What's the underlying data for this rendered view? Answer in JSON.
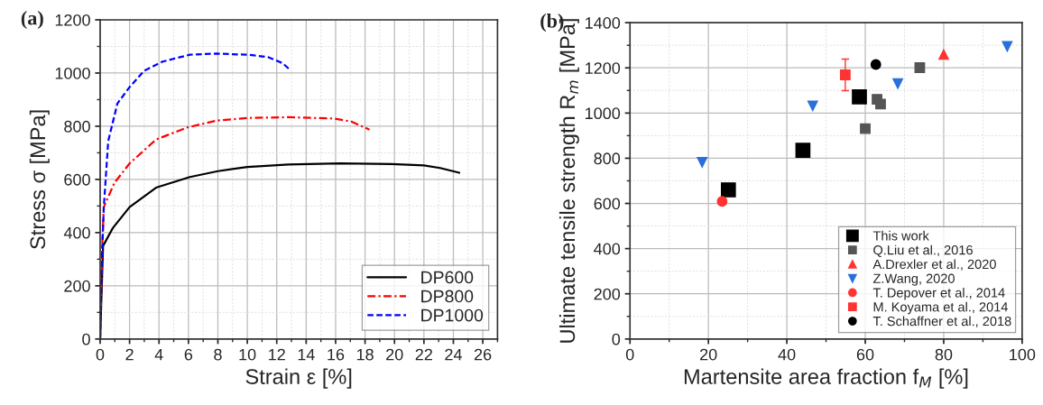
{
  "chart_data": [
    {
      "type": "line",
      "title": "(a)",
      "xlabel": "Strain ε [%]",
      "ylabel": "Stress σ [MPa]",
      "xlim": [
        0,
        27
      ],
      "ylim": [
        0,
        1200
      ],
      "xticks": [
        0,
        2,
        4,
        6,
        8,
        10,
        12,
        14,
        16,
        18,
        20,
        22,
        24,
        26
      ],
      "yticks": [
        0,
        200,
        400,
        600,
        800,
        1000,
        1200
      ],
      "grid": true,
      "legend": "bottom right",
      "series": [
        {
          "name": "DP600",
          "color": "#000000",
          "line_style": "solid",
          "x": [
            0,
            0.2,
            0.86,
            2,
            3.8,
            6.1,
            8,
            10,
            12.8,
            16.3,
            19.8,
            22,
            23.1,
            24.4
          ],
          "values": [
            0,
            350,
            417,
            496,
            569,
            609,
            631,
            647,
            656,
            660,
            658,
            653,
            643,
            625
          ]
        },
        {
          "name": "DP800",
          "color": "#ff0000",
          "line_style": "dashdot",
          "x": [
            0,
            0.14,
            0.25,
            0.96,
            2,
            3.8,
            5.9,
            7.9,
            10,
            12.8,
            15.9,
            17.1,
            18.3
          ],
          "values": [
            0,
            349,
            496,
            586,
            660,
            750,
            795,
            821,
            831,
            834,
            829,
            817,
            787
          ]
        },
        {
          "name": "DP1000",
          "color": "#0000ff",
          "line_style": "dashed",
          "x": [
            0,
            0.1,
            0.25,
            0.55,
            1.17,
            2,
            3,
            4.25,
            6.1,
            7.9,
            10,
            11.4,
            12.4,
            12.9
          ],
          "values": [
            0,
            259,
            496,
            744,
            885,
            947,
            1009,
            1043,
            1069,
            1073,
            1069,
            1060,
            1037,
            1012
          ]
        }
      ]
    },
    {
      "type": "scatter",
      "title": "(b)",
      "xlabel": "Martensite area fraction f$_{M}$ [%]",
      "ylabel": "Ultimate tensile strength R$_{m}$ [MPa]",
      "xlim": [
        0,
        100
      ],
      "ylim": [
        0,
        1400
      ],
      "xticks": [
        0,
        20,
        40,
        60,
        80,
        100
      ],
      "yticks": [
        0,
        200,
        400,
        600,
        800,
        1000,
        1200,
        1400
      ],
      "grid": true,
      "legend": "bottom right",
      "series": [
        {
          "name": "This work",
          "color": "#000000",
          "marker": "square",
          "x": [
            25.1,
            44.1,
            58.5
          ],
          "values": [
            660,
            835,
            1072
          ]
        },
        {
          "name": "Q.Liu et al., 2016",
          "color": "#555555",
          "marker": "square",
          "x": [
            60.0,
            63.0,
            63.9,
            73.9
          ],
          "values": [
            931,
            1061,
            1040,
            1201
          ]
        },
        {
          "name": "A.Drexler et al., 2020",
          "color": "#ff3333",
          "marker": "triangle",
          "x": [
            80.0
          ],
          "values": [
            1259
          ]
        },
        {
          "name": "Z.Wang, 2020",
          "color": "#2a6fdb",
          "marker": "triangle_down",
          "x": [
            18.4,
            46.6,
            68.3,
            96.2
          ],
          "values": [
            782,
            1032,
            1130,
            1295
          ]
        },
        {
          "name": "T. Depover et al., 2014",
          "color": "#ff3333",
          "marker": "circle",
          "x": [
            23.5
          ],
          "values": [
            609
          ]
        },
        {
          "name": "M. Koyama et al., 2014",
          "color": "#ff3333",
          "marker": "square",
          "x": [
            54.9
          ],
          "values": [
            1169
          ],
          "errors": [
            70
          ]
        },
        {
          "name": "T. Schaffner et al., 2018",
          "color": "#000000",
          "marker": "circle",
          "x": [
            62.7
          ],
          "values": [
            1215
          ]
        }
      ]
    }
  ]
}
